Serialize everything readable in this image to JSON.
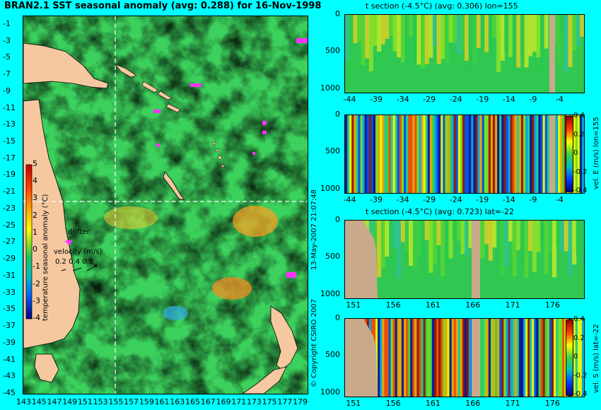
{
  "map": {
    "title": "BRAN2.1 SST seasonal anomaly (avg: 0.288) for 16-Nov-1998",
    "lat_ticks": [
      "-1",
      "-3",
      "-5",
      "-7",
      "-9",
      "-11",
      "-13",
      "-15",
      "-17",
      "-19",
      "-21",
      "-23",
      "-25",
      "-27",
      "-29",
      "-31",
      "-33",
      "-35",
      "-37",
      "-39",
      "-41",
      "-43",
      "-45"
    ],
    "lon_ticks": [
      "143",
      "145",
      "147",
      "149",
      "151",
      "153",
      "155",
      "157",
      "159",
      "161",
      "163",
      "165",
      "167",
      "169",
      "171",
      "173",
      "175",
      "177",
      "179"
    ],
    "colorbar_label": "temperature seasonal anomaly (°C)",
    "colorbar_ticks": [
      "5",
      "4",
      "3",
      "2",
      "1",
      "0",
      "-1",
      "-2",
      "-3",
      "-4"
    ],
    "drifter_label": "drifter",
    "velocity_label": "velocity (m/s)",
    "velocity_scale": "0.2 0.4 0.8",
    "colors": {
      "land": "#f5c8a0",
      "drifter": "#ff33ff",
      "section_line": "#ffffff"
    }
  },
  "side_text": {
    "copyright": "© Copyright CSIRO 2007",
    "date": "13-May-2007 21:07:48"
  },
  "sections": [
    {
      "title": "t section (-4.5°C) (avg: 0.306) lon=155",
      "x_ticks": [
        "-44",
        "-39",
        "-34",
        "-29",
        "-24",
        "-19",
        "-14",
        "-9",
        "-4"
      ],
      "y_ticks": [
        "0",
        "500",
        "1000"
      ],
      "colorbar_label": ""
    },
    {
      "title": "",
      "x_ticks": [
        "-44",
        "-39",
        "-34",
        "-29",
        "-24",
        "-19",
        "-14",
        "-9",
        "-4"
      ],
      "y_ticks": [
        "0",
        "500",
        "1000"
      ],
      "colorbar_label": "vel. E (m/s) lon=155",
      "colorbar_ticks": [
        "0.4",
        "0.2",
        "0",
        "-0.2",
        "-0.4"
      ]
    },
    {
      "title": "t section (-4.5°C) (avg: 0.723) lat=-22",
      "x_ticks": [
        "151",
        "156",
        "161",
        "166",
        "171",
        "176"
      ],
      "y_ticks": [
        "0",
        "500",
        "1000"
      ],
      "colorbar_label": ""
    },
    {
      "title": "",
      "x_ticks": [
        "151",
        "156",
        "161",
        "166",
        "171",
        "176"
      ],
      "y_ticks": [
        "0",
        "500",
        "1000"
      ],
      "colorbar_label": "vel. S (m/s) lat=-22",
      "colorbar_ticks": [
        "0.4",
        "0.2",
        "0",
        "-0.2",
        "-0.4"
      ]
    }
  ],
  "chart_data": [
    {
      "type": "heatmap",
      "title": "BRAN2.1 SST seasonal anomaly (avg: 0.288) for 16-Nov-1998",
      "xlim": [
        143,
        180
      ],
      "ylim": [
        -45,
        0
      ],
      "colorbar_range": [
        -4,
        5
      ],
      "section_lon": 155,
      "section_lat": -22
    },
    {
      "type": "heatmap",
      "title": "t section (-4.5°C) (avg: 0.306) lon=155",
      "xlim": [
        -45,
        0
      ],
      "ylim": [
        1050,
        0
      ]
    },
    {
      "type": "heatmap",
      "xlim": [
        -45,
        0
      ],
      "ylim": [
        1050,
        0
      ],
      "colorbar_range": [
        -0.4,
        0.4
      ]
    },
    {
      "type": "heatmap",
      "title": "t section (-4.5°C) (avg: 0.723) lat=-22",
      "xlim": [
        150,
        180
      ],
      "ylim": [
        1050,
        0
      ]
    },
    {
      "type": "heatmap",
      "xlim": [
        150,
        180
      ],
      "ylim": [
        1050,
        0
      ],
      "colorbar_range": [
        -0.4,
        0.4
      ]
    }
  ]
}
